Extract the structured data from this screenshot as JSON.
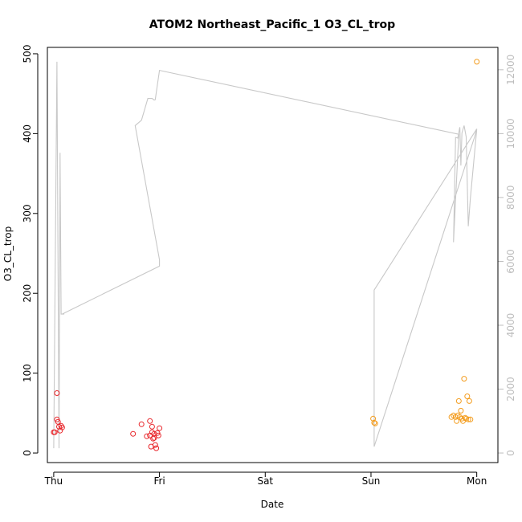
{
  "chart_data": {
    "type": "scatter",
    "title": "ATOM2 Northeast_Pacific_1 O3_CL_trop",
    "xlabel": "Date",
    "ylabel": "O3_CL_trop",
    "x_ticks": [
      "Thu",
      "Fri",
      "Sat",
      "Sun",
      "Mon"
    ],
    "xlim": [
      -0.06,
      4.2
    ],
    "ylim": [
      -12,
      508
    ],
    "y_ticks": [
      0,
      100,
      200,
      300,
      400,
      500
    ],
    "ylim_right": [
      -300,
      12700
    ],
    "y_ticks_right": [
      0,
      2000,
      4000,
      6000,
      8000,
      10000,
      12000
    ],
    "grid": false,
    "colors": {
      "first_flight": "#e8262b",
      "second_flight": "#f39c1e",
      "altitude_line": "#c8c8c8",
      "right_axis": "#bdbdbd",
      "frame": "#000000"
    },
    "series": [
      {
        "color": "first_flight",
        "x": [
          0.0,
          0.01,
          0.03,
          0.03,
          0.04,
          0.05,
          0.06,
          0.08,
          0.07,
          0.75,
          0.83,
          0.88,
          0.91,
          0.91,
          0.92,
          0.93,
          0.93,
          0.94,
          0.95,
          0.95,
          0.96,
          0.97,
          0.98,
          0.99,
          1.0
        ],
        "y": [
          26,
          26,
          75,
          42,
          39,
          33,
          28,
          32,
          34,
          24,
          36,
          21,
          40,
          22,
          8,
          33,
          26,
          18,
          24,
          19,
          10,
          6,
          25,
          22,
          31
        ]
      },
      {
        "color": "second_flight",
        "x": [
          3.02,
          3.03,
          3.04,
          3.76,
          3.78,
          3.8,
          3.81,
          3.82,
          3.83,
          3.84,
          3.85,
          3.86,
          3.87,
          3.88,
          3.89,
          3.9,
          3.91,
          3.92,
          3.93,
          3.94,
          4.0
        ],
        "y": [
          43,
          38,
          37,
          45,
          47,
          45,
          40,
          47,
          65,
          45,
          53,
          43,
          40,
          93,
          44,
          43,
          71,
          42,
          65,
          42,
          490
        ]
      }
    ],
    "altitude_series": {
      "axis": "right",
      "x": [
        0.0,
        0.03,
        0.05,
        0.06,
        0.07,
        0.09,
        0.1,
        0.08,
        1.0,
        1.0,
        0.77,
        0.83,
        0.89,
        0.93,
        0.95,
        0.96,
        1.0,
        3.83,
        3.78,
        3.8,
        3.82,
        3.84,
        3.85,
        3.86,
        3.88,
        3.9,
        3.92,
        3.94,
        4.0,
        3.98,
        3.03,
        3.03,
        4.0
      ],
      "y": [
        150,
        12250,
        150,
        9400,
        4350,
        4350,
        4350,
        4350,
        5850,
        6050,
        10250,
        10420,
        11100,
        11100,
        11050,
        11060,
        11980,
        9980,
        6600,
        9880,
        9860,
        10200,
        9000,
        10020,
        10250,
        9900,
        7100,
        8000,
        10150,
        9900,
        200,
        5100,
        10150
      ]
    }
  }
}
